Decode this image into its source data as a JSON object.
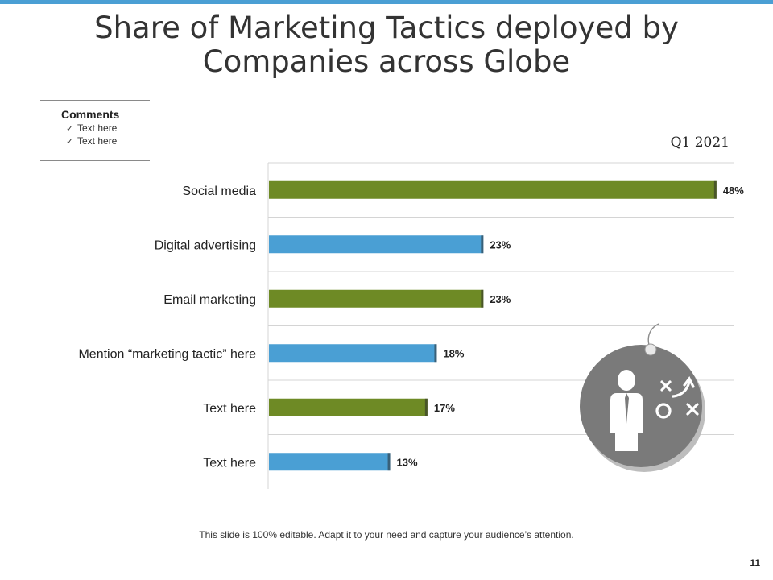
{
  "slide": {
    "title_line1": "Share of Marketing Tactics deployed by",
    "title_line2": "Companies across Globe",
    "footer": "This slide is 100% editable. Adapt it to your need and capture your audience’s attention.",
    "page_number": "11"
  },
  "comments": {
    "title": "Comments",
    "items": [
      "Text here",
      "Text here"
    ]
  },
  "colors": {
    "accent_bar": "#4a9fd4",
    "green": "#6e8a25",
    "blue": "#4a9fd4",
    "icon_gray": "#7a7a7a"
  },
  "icon": {
    "name": "strategy-tag-icon"
  },
  "chart_data": {
    "type": "bar",
    "orientation": "horizontal",
    "title": "Q1 2021",
    "categories": [
      "Social media",
      "Digital advertising",
      "Email marketing",
      "Mention “marketing tactic” here",
      "Text here",
      "Text here"
    ],
    "values": [
      48,
      23,
      23,
      18,
      17,
      13
    ],
    "labels": [
      "48%",
      "23%",
      "23%",
      "18%",
      "17%",
      "13%"
    ],
    "bar_colors": [
      "#6e8a25",
      "#4a9fd4",
      "#6e8a25",
      "#4a9fd4",
      "#6e8a25",
      "#4a9fd4"
    ],
    "xlim": [
      0,
      50
    ],
    "unit": "%",
    "grid": true,
    "legend": "none"
  }
}
